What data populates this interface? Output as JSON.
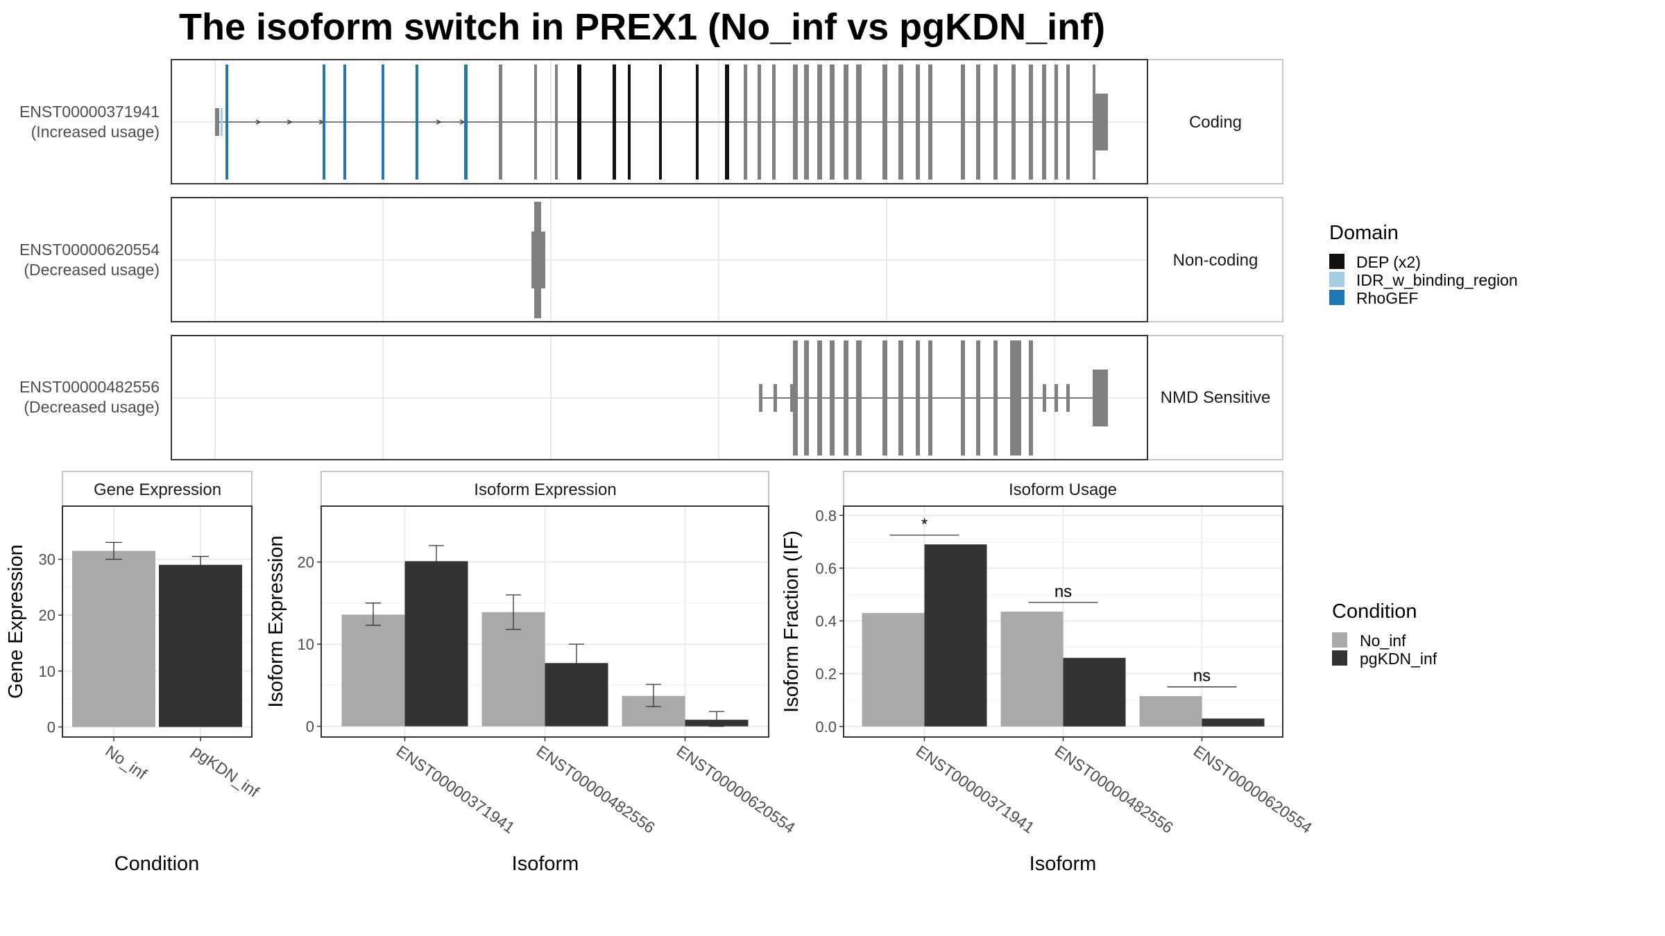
{
  "title": "The isoform switch in PREX1 (No_inf vs pgKDN_inf)",
  "colors": {
    "no_inf": "#a9a9a9",
    "pgkdn_inf": "#333333",
    "exon": "#808080",
    "dep": "#111111",
    "idr": "#a6cee3",
    "rhogef": "#1f78b4",
    "grid": "#ebebeb",
    "strip_border": "#b3b3b3",
    "panel_border": "#333333"
  },
  "isoform_panel": {
    "rows": [
      {
        "id": "ENST00000371941",
        "usage": "(Increased usage)",
        "strip": "Coding"
      },
      {
        "id": "ENST00000620554",
        "usage": "(Decreased usage)",
        "strip": "Non-coding"
      },
      {
        "id": "ENST00000482556",
        "usage": "(Decreased usage)",
        "strip": "NMD Sensitive"
      }
    ]
  },
  "domain_legend": {
    "title": "Domain",
    "items": [
      {
        "label": "DEP (x2)",
        "color": "#111111"
      },
      {
        "label": "IDR_w_binding_region",
        "color": "#a6cee3"
      },
      {
        "label": "RhoGEF",
        "color": "#1f78b4"
      }
    ]
  },
  "condition_legend": {
    "title": "Condition",
    "items": [
      {
        "label": "No_inf",
        "color": "#a9a9a9"
      },
      {
        "label": "pgKDN_inf",
        "color": "#333333"
      }
    ]
  },
  "chart_data": [
    {
      "type": "bar",
      "title": "Gene Expression",
      "xlabel": "Condition",
      "ylabel": "Gene Expression",
      "categories": [
        "No_inf",
        "pgKDN_inf"
      ],
      "values": [
        31.5,
        29.0
      ],
      "errors": [
        [
          30.0,
          33.0
        ],
        [
          27.8,
          30.5
        ]
      ],
      "colors": [
        "#a9a9a9",
        "#333333"
      ],
      "yticks": [
        0,
        10,
        20,
        30
      ],
      "ylim": [
        -1.8,
        39.5
      ]
    },
    {
      "type": "bar",
      "title": "Isoform Expression",
      "xlabel": "Isoform",
      "ylabel": "Isoform Expression",
      "categories": [
        "ENST00000371941",
        "ENST00000482556",
        "ENST00000620554"
      ],
      "series": [
        {
          "name": "No_inf",
          "values": [
            13.6,
            13.9,
            3.7
          ],
          "errors": [
            [
              12.3,
              15.0
            ],
            [
              11.8,
              16.0
            ],
            [
              2.4,
              5.1
            ]
          ]
        },
        {
          "name": "pgKDN_inf",
          "values": [
            20.1,
            7.7,
            0.8
          ],
          "errors": [
            [
              18.2,
              22.0
            ],
            [
              5.5,
              10.0
            ],
            [
              0.0,
              1.8
            ]
          ]
        }
      ],
      "yticks": [
        0,
        10,
        20
      ],
      "ylim": [
        -1.3,
        26.8
      ]
    },
    {
      "type": "bar",
      "title": "Isoform Usage",
      "xlabel": "Isoform",
      "ylabel": "Isoform Fraction (IF)",
      "categories": [
        "ENST00000371941",
        "ENST00000482556",
        "ENST00000620554"
      ],
      "series": [
        {
          "name": "No_inf",
          "values": [
            0.43,
            0.435,
            0.115
          ]
        },
        {
          "name": "pgKDN_inf",
          "values": [
            0.69,
            0.26,
            0.03
          ]
        }
      ],
      "significance": [
        "*",
        "ns",
        "ns"
      ],
      "sig_heights": [
        0.725,
        0.47,
        0.15
      ],
      "yticks": [
        0.0,
        0.2,
        0.4,
        0.6,
        0.8
      ],
      "ylim": [
        -0.04,
        0.835
      ]
    }
  ]
}
